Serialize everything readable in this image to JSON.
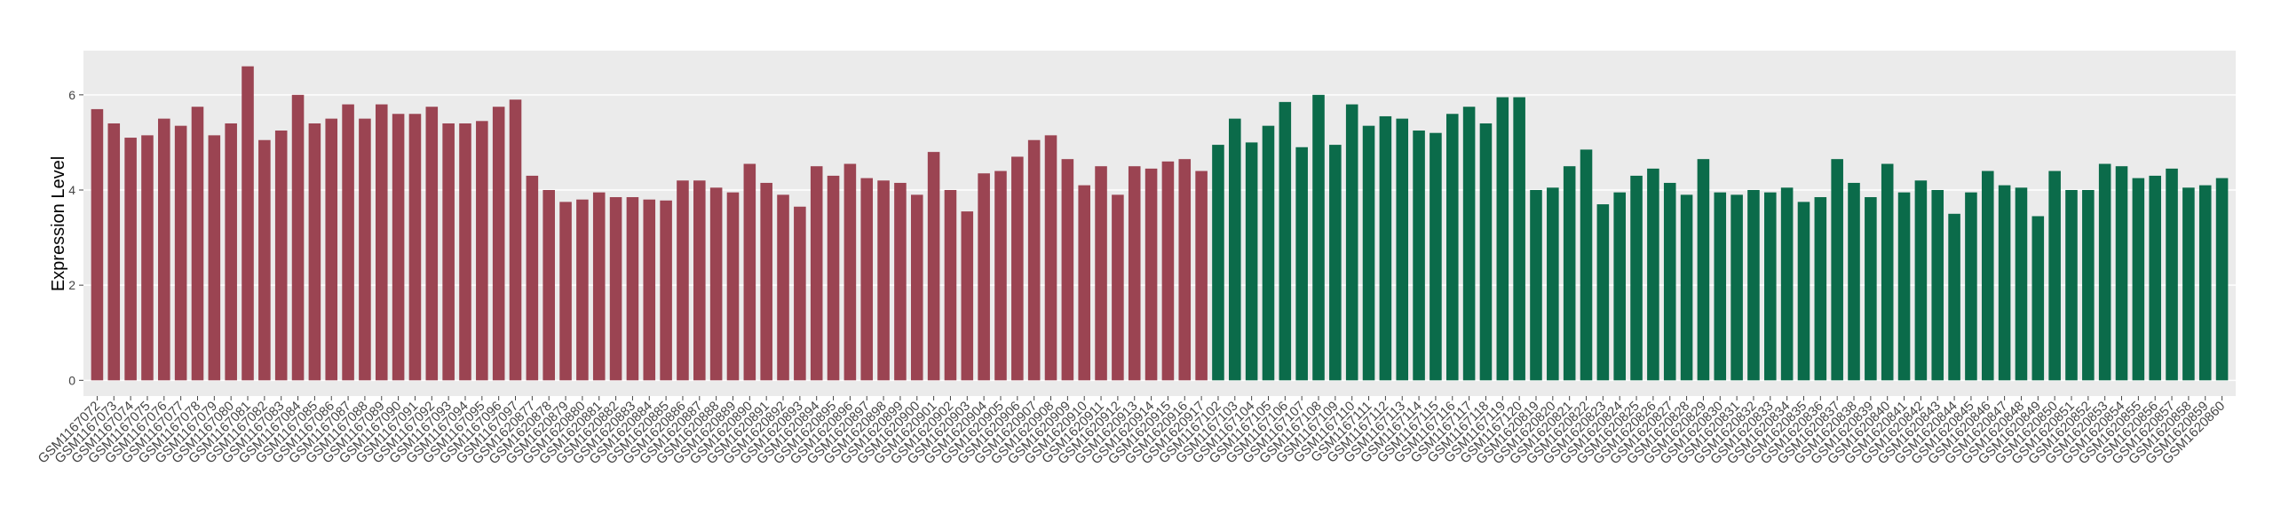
{
  "chart_data": {
    "type": "bar",
    "y_label": "Expression Level",
    "ylim": [
      -0.33,
      6.93
    ],
    "yticks": [
      0,
      2,
      4,
      6
    ],
    "grid": true,
    "groups": [
      {
        "color": "#9b4452",
        "categories": [
          "GSM1167072",
          "GSM1167073",
          "GSM1167074",
          "GSM1167075",
          "GSM1167076",
          "GSM1167077",
          "GSM1167078",
          "GSM1167079",
          "GSM1167080",
          "GSM1167081",
          "GSM1167082",
          "GSM1167083",
          "GSM1167084",
          "GSM1167085",
          "GSM1167086",
          "GSM1167087",
          "GSM1167088",
          "GSM1167089",
          "GSM1167090",
          "GSM1167091",
          "GSM1167092",
          "GSM1167093",
          "GSM1167094",
          "GSM1167095",
          "GSM1167096",
          "GSM1167097",
          "GSM1620877",
          "GSM1620878",
          "GSM1620879",
          "GSM1620880",
          "GSM1620881",
          "GSM1620882",
          "GSM1620883",
          "GSM1620884",
          "GSM1620885",
          "GSM1620886",
          "GSM1620887",
          "GSM1620888",
          "GSM1620889",
          "GSM1620890",
          "GSM1620891",
          "GSM1620892",
          "GSM1620893",
          "GSM1620894",
          "GSM1620895",
          "GSM1620896",
          "GSM1620897",
          "GSM1620898",
          "GSM1620899",
          "GSM1620900",
          "GSM1620901",
          "GSM1620902",
          "GSM1620903",
          "GSM1620904",
          "GSM1620905",
          "GSM1620906",
          "GSM1620907",
          "GSM1620908",
          "GSM1620909",
          "GSM1620910",
          "GSM1620911",
          "GSM1620912",
          "GSM1620913",
          "GSM1620914",
          "GSM1620915",
          "GSM1620916",
          "GSM1620917"
        ],
        "values": [
          5.7,
          5.4,
          5.1,
          5.15,
          5.5,
          5.35,
          5.75,
          5.15,
          5.4,
          6.6,
          5.05,
          5.25,
          6.0,
          5.4,
          5.5,
          5.8,
          5.5,
          5.8,
          5.6,
          5.6,
          5.75,
          5.4,
          5.4,
          5.45,
          5.75,
          5.9,
          4.3,
          4.0,
          3.75,
          3.8,
          3.95,
          3.85,
          3.85,
          3.8,
          3.78,
          4.2,
          4.2,
          4.05,
          3.95,
          4.55,
          4.15,
          3.9,
          3.65,
          4.5,
          4.3,
          4.55,
          4.25,
          4.2,
          4.15,
          3.9,
          4.8,
          4.0,
          3.55,
          4.35,
          4.4,
          4.7,
          5.05,
          5.15,
          4.65,
          4.1,
          4.5,
          3.9,
          4.5,
          4.45,
          4.6,
          4.65,
          4.4
        ]
      },
      {
        "color": "#0b6b4a",
        "categories": [
          "GSM1167102",
          "GSM1167103",
          "GSM1167104",
          "GSM1167105",
          "GSM1167106",
          "GSM1167107",
          "GSM1167108",
          "GSM1167109",
          "GSM1167110",
          "GSM1167111",
          "GSM1167112",
          "GSM1167113",
          "GSM1167114",
          "GSM1167115",
          "GSM1167116",
          "GSM1167117",
          "GSM1167118",
          "GSM1167119",
          "GSM1167120",
          "GSM1620819",
          "GSM1620820",
          "GSM1620821",
          "GSM1620822",
          "GSM1620823",
          "GSM1620824",
          "GSM1620825",
          "GSM1620826",
          "GSM1620827",
          "GSM1620828",
          "GSM1620829",
          "GSM1620830",
          "GSM1620831",
          "GSM1620832",
          "GSM1620833",
          "GSM1620834",
          "GSM1620835",
          "GSM1620836",
          "GSM1620837",
          "GSM1620838",
          "GSM1620839",
          "GSM1620840",
          "GSM1620841",
          "GSM1620842",
          "GSM1620843",
          "GSM1620844",
          "GSM1620845",
          "GSM1620846",
          "GSM1620847",
          "GSM1620848",
          "GSM1620849",
          "GSM1620850",
          "GSM1620851",
          "GSM1620852",
          "GSM1620853",
          "GSM1620854",
          "GSM1620855",
          "GSM1620856",
          "GSM1620857",
          "GSM1620858",
          "GSM1620859",
          "GSM1620860"
        ],
        "values": [
          4.95,
          5.5,
          5.0,
          5.35,
          5.85,
          4.9,
          6.0,
          4.95,
          5.8,
          5.35,
          5.55,
          5.5,
          5.25,
          5.2,
          5.6,
          5.75,
          5.4,
          5.95,
          5.95,
          4.0,
          4.05,
          4.5,
          4.85,
          3.7,
          3.95,
          4.3,
          4.45,
          4.15,
          3.9,
          4.65,
          3.95,
          3.9,
          4.0,
          3.95,
          4.05,
          3.75,
          3.85,
          4.65,
          4.15,
          3.85,
          4.55,
          3.95,
          4.2,
          4.0,
          3.5,
          3.95,
          4.4,
          4.1,
          4.05,
          3.45,
          4.4,
          4.0,
          4.0,
          4.55,
          4.5,
          4.25,
          4.3,
          4.45,
          4.05,
          4.1,
          4.25
        ]
      }
    ]
  }
}
